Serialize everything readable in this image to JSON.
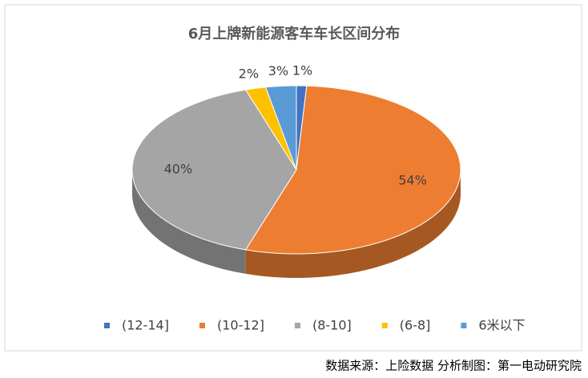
{
  "chart_data": {
    "type": "pie3d",
    "title": "6月上牌新能源客车车长区间分布",
    "series": [
      {
        "name": "(12-14]",
        "color": "#4472c4",
        "values": [
          1
        ],
        "value_labels": [
          "1%"
        ]
      },
      {
        "name": "(10-12]",
        "color": "#ed7d31",
        "values": [
          54
        ],
        "value_labels": [
          "54%"
        ]
      },
      {
        "name": "(8-10]",
        "color": "#a5a5a5",
        "values": [
          40
        ],
        "value_labels": [
          "40%"
        ]
      },
      {
        "name": "(6-8]",
        "color": "#ffc000",
        "values": [
          2
        ],
        "value_labels": [
          "2%"
        ]
      },
      {
        "name": "6米以下",
        "color": "#5b9bd5",
        "values": [
          3
        ],
        "value_labels": [
          "3%"
        ]
      }
    ],
    "source": "数据来源：上险数据  分析制图：第一电动研究院"
  }
}
